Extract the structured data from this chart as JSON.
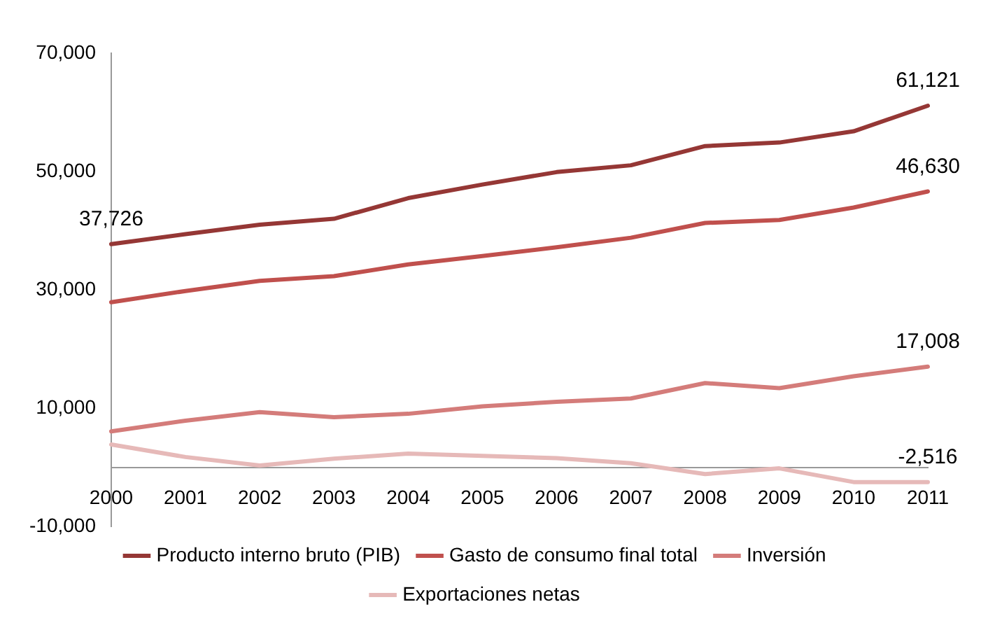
{
  "chart_data": {
    "type": "line",
    "categories": [
      "2000",
      "2001",
      "2002",
      "2003",
      "2004",
      "2005",
      "2006",
      "2007",
      "2008",
      "2009",
      "2010",
      "2011"
    ],
    "series": [
      {
        "name": "Producto interno bruto (PIB)",
        "color": "#953735",
        "values": [
          37726,
          39400,
          41000,
          42000,
          45500,
          47800,
          49900,
          51050,
          54300,
          54900,
          56800,
          61121
        ],
        "value_labels": [
          "37,726",
          null,
          null,
          null,
          null,
          null,
          null,
          null,
          null,
          null,
          null,
          "61,121"
        ]
      },
      {
        "name": "Gasto de consumo final total",
        "color": "#c0504d",
        "values": [
          27900,
          29800,
          31500,
          32300,
          34300,
          35700,
          37200,
          38800,
          41300,
          41800,
          43900,
          46630
        ],
        "value_labels": [
          null,
          null,
          null,
          null,
          null,
          null,
          null,
          null,
          null,
          null,
          null,
          "46,630"
        ]
      },
      {
        "name": "Inversión",
        "color": "#d47c7a",
        "values": [
          6060,
          7880,
          9330,
          8460,
          9040,
          10290,
          11060,
          11630,
          14230,
          13370,
          15380,
          17008
        ],
        "value_labels": [
          null,
          null,
          null,
          null,
          null,
          null,
          null,
          null,
          null,
          null,
          null,
          "17,008"
        ]
      },
      {
        "name": "Exportaciones netas",
        "color": "#e6b9b8",
        "values": [
          3850,
          1730,
          290,
          1440,
          2310,
          1920,
          1540,
          670,
          -1150,
          -190,
          -2500,
          -2516
        ],
        "value_labels": [
          null,
          null,
          null,
          null,
          null,
          null,
          null,
          null,
          null,
          null,
          null,
          "-2,516"
        ]
      }
    ],
    "ylim": [
      -10000,
      70000
    ],
    "yticks": [
      {
        "value": -10000,
        "label": "-10,000"
      },
      {
        "value": 10000,
        "label": "10,000"
      },
      {
        "value": 30000,
        "label": "30,000"
      },
      {
        "value": 50000,
        "label": "50,000"
      },
      {
        "value": 70000,
        "label": "70,000"
      }
    ],
    "grid": false,
    "legend": "bottom",
    "marker": "none",
    "line_style": "solid"
  }
}
